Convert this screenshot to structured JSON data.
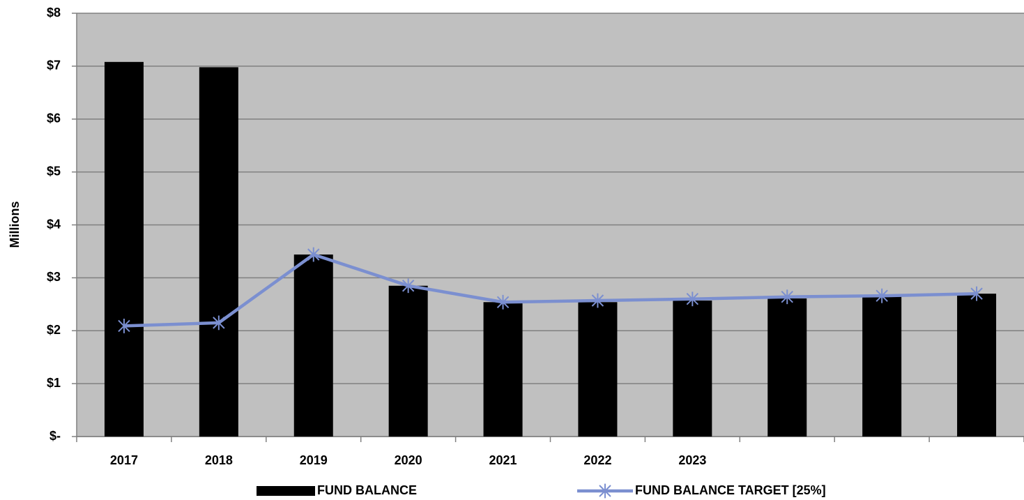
{
  "chart_data": {
    "type": "bar",
    "y_label": "Millions",
    "categories": [
      "2017",
      "2018",
      "2019",
      "2020",
      "2021",
      "2022",
      "2023",
      null,
      null,
      null
    ],
    "series": [
      {
        "name": "FUND BALANCE",
        "type": "bar",
        "color": "#000000",
        "values": [
          7.08,
          6.98,
          3.44,
          2.85,
          2.54,
          2.54,
          2.57,
          2.61,
          2.66,
          2.7
        ]
      },
      {
        "name": "FUND BALANCE TARGET [25%]",
        "type": "line",
        "color": "#7b8fd0",
        "values": [
          2.09,
          2.15,
          3.44,
          2.85,
          2.54,
          2.57,
          2.6,
          2.64,
          2.66,
          2.7
        ]
      }
    ],
    "ylim": [
      0,
      8
    ],
    "yticks": [
      {
        "value": 0,
        "label": "$-"
      },
      {
        "value": 1,
        "label": "$1"
      },
      {
        "value": 2,
        "label": "$2"
      },
      {
        "value": 3,
        "label": "$3"
      },
      {
        "value": 4,
        "label": "$4"
      },
      {
        "value": 5,
        "label": "$5"
      },
      {
        "value": 6,
        "label": "$6"
      },
      {
        "value": 7,
        "label": "$7"
      },
      {
        "value": 8,
        "label": "$8"
      }
    ],
    "grid": true,
    "legend": "bottom",
    "background": "#c0c0c0"
  }
}
